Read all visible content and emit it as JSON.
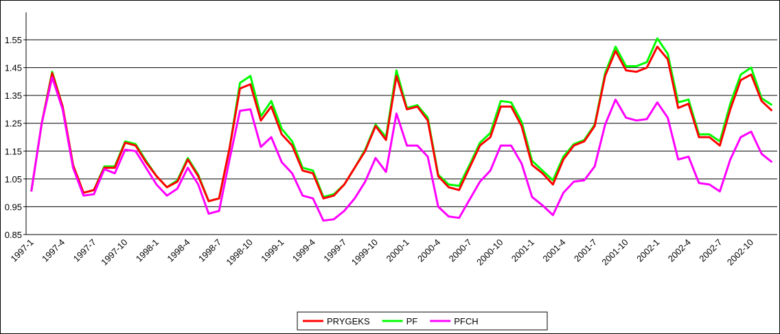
{
  "chart_data": {
    "type": "line",
    "categories": [
      "1997-1",
      null,
      null,
      "1997-4",
      null,
      null,
      "1997-7",
      null,
      null,
      "1997-10",
      null,
      null,
      "1998-1",
      null,
      null,
      "1998-4",
      null,
      null,
      "1998-7",
      null,
      null,
      "1998-10",
      null,
      null,
      "1999-1",
      null,
      null,
      "1999-4",
      null,
      null,
      "1999-7",
      null,
      null,
      "1999-10",
      null,
      null,
      "2000-1",
      null,
      null,
      "2000-4",
      null,
      null,
      "2000-7",
      null,
      null,
      "2000-10",
      null,
      null,
      "2001-1",
      null,
      null,
      "2001-4",
      null,
      null,
      "2001-7",
      null,
      null,
      "2001-10",
      null,
      null,
      "2002-1",
      null,
      null,
      "2002-4",
      null,
      null,
      "2002-7",
      null,
      null,
      "2002-10",
      null,
      null
    ],
    "series": [
      {
        "name": "PF",
        "color": "#00ff00",
        "values": [
          1.005,
          1.25,
          1.435,
          1.31,
          1.1,
          1.0,
          1.01,
          1.095,
          1.095,
          1.185,
          1.175,
          1.115,
          1.06,
          1.02,
          1.045,
          1.125,
          1.065,
          0.97,
          0.98,
          1.16,
          1.395,
          1.42,
          1.275,
          1.33,
          1.23,
          1.185,
          1.09,
          1.08,
          0.985,
          0.995,
          1.03,
          1.09,
          1.155,
          1.245,
          1.2,
          1.44,
          1.305,
          1.315,
          1.27,
          1.065,
          1.03,
          1.025,
          1.1,
          1.18,
          1.215,
          1.33,
          1.325,
          1.255,
          1.115,
          1.08,
          1.045,
          1.13,
          1.175,
          1.19,
          1.245,
          1.43,
          1.525,
          1.455,
          1.455,
          1.47,
          1.555,
          1.5,
          1.325,
          1.335,
          1.21,
          1.21,
          1.185,
          1.32,
          1.425,
          1.45,
          1.34,
          1.315
        ]
      },
      {
        "name": "PRYGEKS",
        "color": "#ff0000",
        "values": [
          1.005,
          1.25,
          1.43,
          1.31,
          1.1,
          1.0,
          1.01,
          1.09,
          1.09,
          1.18,
          1.17,
          1.11,
          1.06,
          1.02,
          1.04,
          1.12,
          1.06,
          0.97,
          0.98,
          1.16,
          1.375,
          1.39,
          1.26,
          1.31,
          1.21,
          1.17,
          1.08,
          1.07,
          0.98,
          0.99,
          1.03,
          1.09,
          1.15,
          1.24,
          1.19,
          1.42,
          1.3,
          1.31,
          1.26,
          1.06,
          1.02,
          1.01,
          1.09,
          1.17,
          1.2,
          1.31,
          1.31,
          1.24,
          1.1,
          1.07,
          1.03,
          1.12,
          1.17,
          1.185,
          1.24,
          1.42,
          1.51,
          1.44,
          1.435,
          1.45,
          1.525,
          1.48,
          1.305,
          1.32,
          1.2,
          1.2,
          1.17,
          1.3,
          1.405,
          1.425,
          1.33,
          1.295
        ]
      },
      {
        "name": "PFCH",
        "color": "#ff00ff",
        "values": [
          1.005,
          1.25,
          1.415,
          1.3,
          1.09,
          0.99,
          0.995,
          1.085,
          1.07,
          1.155,
          1.15,
          1.09,
          1.03,
          0.99,
          1.015,
          1.09,
          1.03,
          0.925,
          0.935,
          1.12,
          1.295,
          1.3,
          1.165,
          1.2,
          1.11,
          1.07,
          0.99,
          0.98,
          0.9,
          0.905,
          0.935,
          0.98,
          1.04,
          1.125,
          1.075,
          1.285,
          1.17,
          1.17,
          1.13,
          0.95,
          0.915,
          0.91,
          0.975,
          1.04,
          1.08,
          1.17,
          1.17,
          1.105,
          0.985,
          0.955,
          0.92,
          1.0,
          1.04,
          1.045,
          1.095,
          1.245,
          1.335,
          1.27,
          1.26,
          1.265,
          1.325,
          1.27,
          1.12,
          1.13,
          1.035,
          1.03,
          1.005,
          1.12,
          1.2,
          1.22,
          1.14,
          1.11
        ]
      }
    ],
    "legend_order": [
      "PRYGEKS",
      "PF",
      "PFCH"
    ],
    "ylim": [
      0.85,
      1.55
    ],
    "yticks": [
      0.85,
      0.95,
      1.05,
      1.15,
      1.25,
      1.35,
      1.45,
      1.55
    ],
    "grid": true,
    "legend": "bottom"
  }
}
